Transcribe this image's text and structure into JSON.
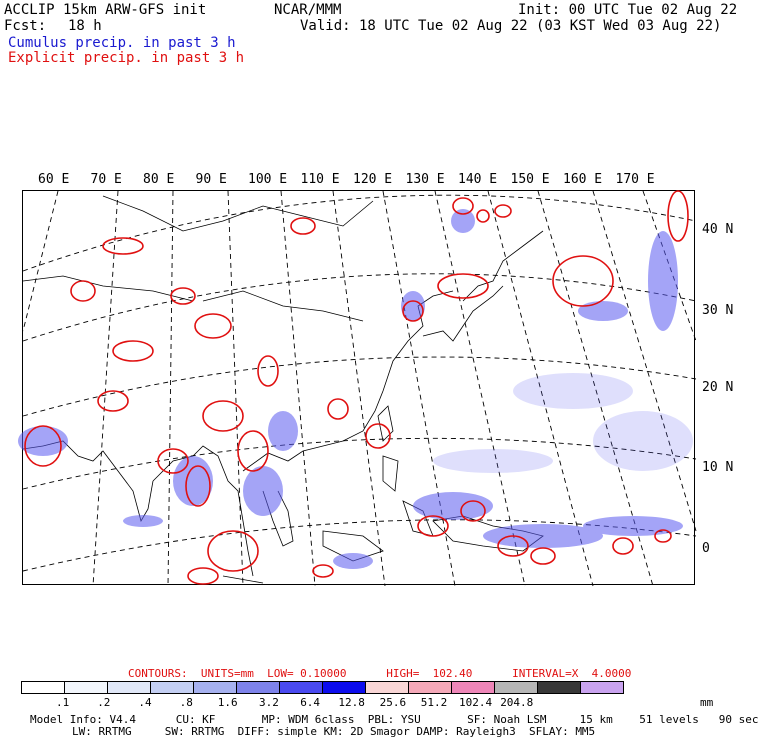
{
  "header": {
    "model": "ACCLIP 15km ARW-GFS init",
    "fcst_label": "Fcst:",
    "fcst_value": "18 h",
    "center": "NCAR/MMM",
    "init": "Init: 00 UTC Tue 02 Aug 22",
    "valid": "Valid: 18 UTC Tue 02 Aug 22 (03 KST Wed 03 Aug 22)",
    "cumulus": "Cumulus precip. in past 3 h",
    "explicit": "Explicit precip. in past 3 h"
  },
  "map": {
    "lon_labels": [
      "60 E",
      "70 E",
      "80 E",
      "90 E",
      "100 E",
      "110 E",
      "120 E",
      "130 E",
      "140 E",
      "150 E",
      "160 E",
      "170 E"
    ],
    "lat_labels": [
      "40 N",
      "30 N",
      "20 N",
      "10 N",
      "0"
    ]
  },
  "legend": {
    "contours": "CONTOURS:  UNITS=mm  LOW= 0.10000      HIGH=  102.40      INTERVAL=X  4.0000",
    "ticks": [
      ".1",
      ".2",
      ".4",
      ".8",
      "1.6",
      "3.2",
      "6.4",
      "12.8",
      "25.6",
      "51.2",
      "102.4",
      "204.8"
    ],
    "units": "mm",
    "colors": [
      "#ffffff",
      "#f2f6fc",
      "#e1e8f8",
      "#c4cff3",
      "#a6b1ef",
      "#7e83ea",
      "#4a4af0",
      "#0c0ced",
      "#f9d6d6",
      "#f5a9b9",
      "#ee86b8",
      "#b6b6b6",
      "#383838",
      "#c9a3ef"
    ]
  },
  "model_info": {
    "line1": "Model Info: V4.4      CU: KF       MP: WDM 6class  PBL: YSU       SF: Noah LSM     15 km    51 levels   90 sec",
    "line2": "LW: RRTMG     SW: RRTMG  DIFF: simple KM: 2D Smagor DAMP: Rayleigh3  SFLAY: MM5"
  }
}
